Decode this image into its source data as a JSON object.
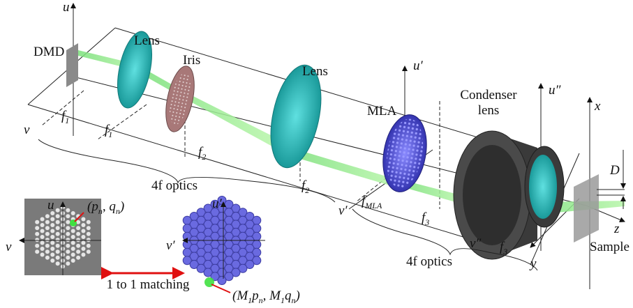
{
  "components": {
    "dmd": "DMD",
    "lens_1": "Lens",
    "iris": "Iris",
    "lens_2": "Lens",
    "mla": "MLA",
    "condenser": [
      "Condenser",
      "lens"
    ],
    "sample": "Sample"
  },
  "axes": {
    "u": "u",
    "v": "v",
    "u_prime": "u′",
    "v_prime": "v′",
    "u_dprime": "u″",
    "v_dprime": "v″",
    "x": "x",
    "y": "y",
    "z": "z"
  },
  "distances": [
    {
      "f": "f",
      "sub": "1"
    },
    {
      "f": "f",
      "sub": "1"
    },
    {
      "f": "f",
      "sub": "2"
    },
    {
      "f": "f",
      "sub": "2"
    },
    {
      "f": "f",
      "sub": "MLA"
    },
    {
      "f": "f",
      "sub": "3"
    },
    {
      "f": "f",
      "sub": "3"
    }
  ],
  "spans": [
    "4f optics",
    "4f optics"
  ],
  "thickness": "D",
  "inset": {
    "dmd_u": "u",
    "dmd_v": "v",
    "dmd_point": [
      "(p",
      "n",
      ", q",
      "n",
      ")"
    ],
    "mla_u": "u′",
    "mla_v": "v′",
    "matching": "1 to 1 matching",
    "mla_point": [
      "(M",
      "1",
      "p",
      "n",
      ", M",
      "1",
      "q",
      "n",
      ")"
    ]
  }
}
